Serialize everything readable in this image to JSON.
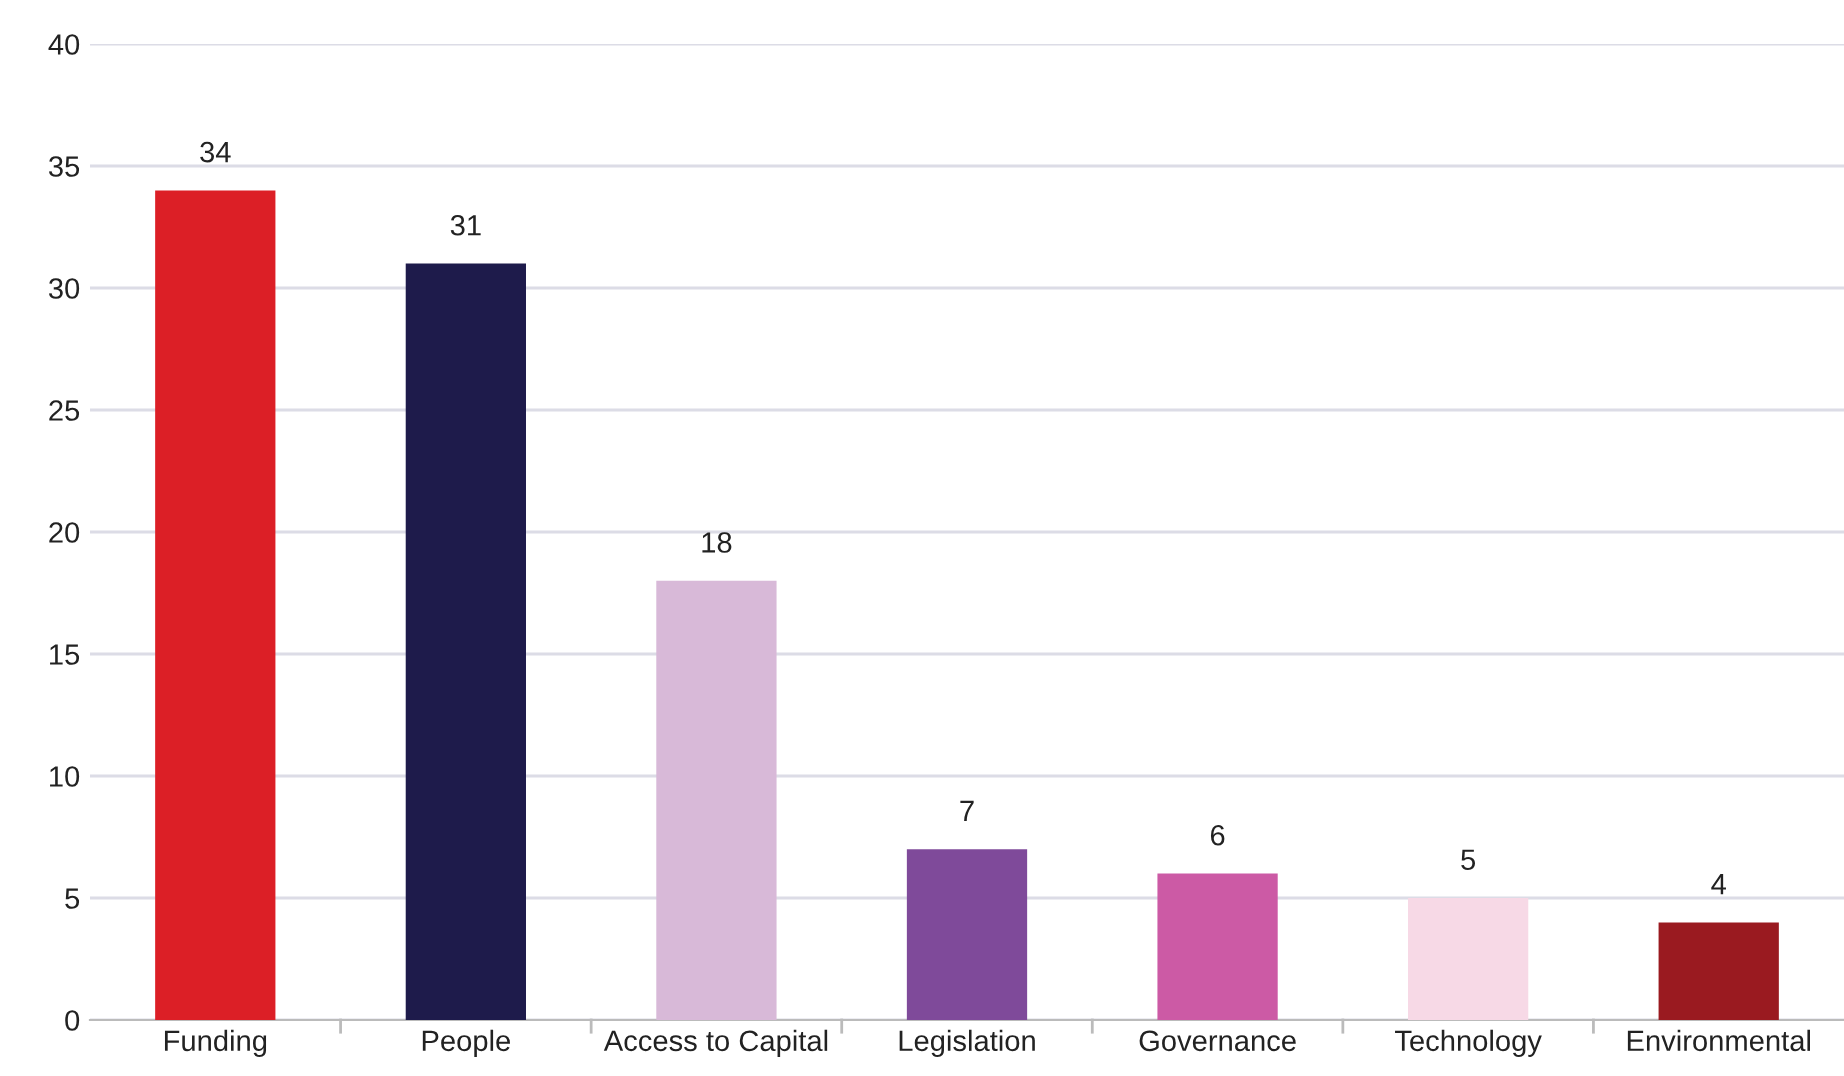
{
  "chart_data": {
    "type": "bar",
    "categories": [
      "Funding",
      "People",
      "Access to Capital",
      "Legislation",
      "Governance",
      "Technology",
      "Environmental"
    ],
    "values": [
      34,
      31,
      18,
      7,
      6,
      5,
      4
    ],
    "colors": [
      "#dc1f26",
      "#1e1b4b",
      "#d8b9d8",
      "#7f4a9a",
      "#cc5aa5",
      "#f7d9e6",
      "#9a1a20"
    ],
    "ylim": [
      0,
      40
    ],
    "yticks": [
      0,
      5,
      10,
      15,
      20,
      25,
      30,
      35,
      40
    ],
    "grid": "y",
    "data_labels": true
  }
}
